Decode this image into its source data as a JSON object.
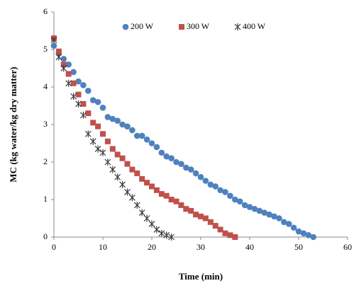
{
  "chart_data": {
    "type": "scatter",
    "xlabel": "Time (min)",
    "ylabel": "MC (kg water/kg dry matter)",
    "xlim": [
      0,
      60
    ],
    "xticks": [
      0,
      10,
      20,
      30,
      40,
      50,
      60
    ],
    "ylim": [
      0,
      6
    ],
    "yticks": [
      0,
      1,
      2,
      3,
      4,
      5,
      6
    ],
    "grid": false,
    "legend": "top",
    "series": [
      {
        "name": "200 W",
        "color": "#4f81bd",
        "marker": "circle",
        "x": [
          0,
          1,
          2,
          3,
          4,
          5,
          6,
          7,
          8,
          9,
          10,
          11,
          12,
          13,
          14,
          15,
          16,
          17,
          18,
          19,
          20,
          21,
          22,
          23,
          24,
          25,
          26,
          27,
          28,
          29,
          30,
          31,
          32,
          33,
          34,
          35,
          36,
          37,
          38,
          39,
          40,
          41,
          42,
          43,
          44,
          45,
          46,
          47,
          48,
          49,
          50,
          51,
          52,
          53
        ],
        "values": [
          5.1,
          4.9,
          4.75,
          4.6,
          4.4,
          4.15,
          4.05,
          3.9,
          3.65,
          3.6,
          3.45,
          3.2,
          3.15,
          3.1,
          3.0,
          2.95,
          2.85,
          2.7,
          2.7,
          2.6,
          2.5,
          2.4,
          2.25,
          2.15,
          2.1,
          2.0,
          1.95,
          1.85,
          1.8,
          1.7,
          1.6,
          1.5,
          1.4,
          1.35,
          1.25,
          1.2,
          1.1,
          1.0,
          0.95,
          0.85,
          0.8,
          0.75,
          0.7,
          0.65,
          0.6,
          0.55,
          0.5,
          0.4,
          0.35,
          0.25,
          0.15,
          0.1,
          0.05,
          0.0
        ]
      },
      {
        "name": "300 W",
        "color": "#c0504d",
        "marker": "square",
        "x": [
          0,
          1,
          2,
          3,
          4,
          5,
          6,
          7,
          8,
          9,
          10,
          11,
          12,
          13,
          14,
          15,
          16,
          17,
          18,
          19,
          20,
          21,
          22,
          23,
          24,
          25,
          26,
          27,
          28,
          29,
          30,
          31,
          32,
          33,
          34,
          35,
          36,
          37
        ],
        "values": [
          5.3,
          4.95,
          4.6,
          4.35,
          4.1,
          3.8,
          3.55,
          3.3,
          3.05,
          2.95,
          2.75,
          2.55,
          2.35,
          2.2,
          2.1,
          1.95,
          1.8,
          1.7,
          1.55,
          1.45,
          1.35,
          1.25,
          1.15,
          1.1,
          1.0,
          0.95,
          0.85,
          0.75,
          0.7,
          0.6,
          0.55,
          0.5,
          0.4,
          0.3,
          0.2,
          0.1,
          0.05,
          0.0
        ]
      },
      {
        "name": "400 W",
        "color": "#3a3a3a",
        "marker": "star",
        "x": [
          0,
          1,
          2,
          3,
          4,
          5,
          6,
          7,
          8,
          9,
          10,
          11,
          12,
          13,
          14,
          15,
          16,
          17,
          18,
          19,
          20,
          21,
          22,
          23,
          24
        ],
        "values": [
          5.25,
          4.8,
          4.5,
          4.1,
          3.75,
          3.55,
          3.25,
          2.75,
          2.55,
          2.35,
          2.25,
          2.0,
          1.8,
          1.6,
          1.4,
          1.2,
          1.05,
          0.85,
          0.65,
          0.5,
          0.35,
          0.2,
          0.1,
          0.05,
          0.0
        ]
      }
    ]
  }
}
